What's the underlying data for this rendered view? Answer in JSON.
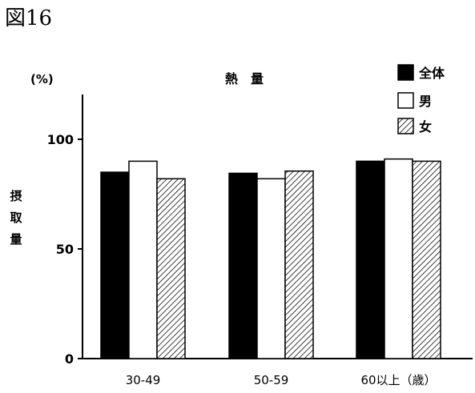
{
  "figure_label": "図16",
  "chart_data": {
    "type": "bar",
    "title": "熱　量",
    "unit_label": "(%)",
    "ylabel": "摂取量",
    "categories": [
      "30-49",
      "50-59",
      "60以上（歳）"
    ],
    "series": [
      {
        "name": "全体",
        "values": [
          85,
          84.5,
          90
        ],
        "fill": "solid",
        "color": "#000000"
      },
      {
        "name": "男",
        "values": [
          90,
          82,
          91
        ],
        "fill": "empty",
        "color": "#ffffff"
      },
      {
        "name": "女",
        "values": [
          82,
          85.5,
          90
        ],
        "fill": "hatched",
        "color": "#000000"
      }
    ],
    "yticks": [
      0,
      50,
      100
    ],
    "ylim": [
      0,
      120
    ],
    "legend": "top-right",
    "grid": false
  }
}
